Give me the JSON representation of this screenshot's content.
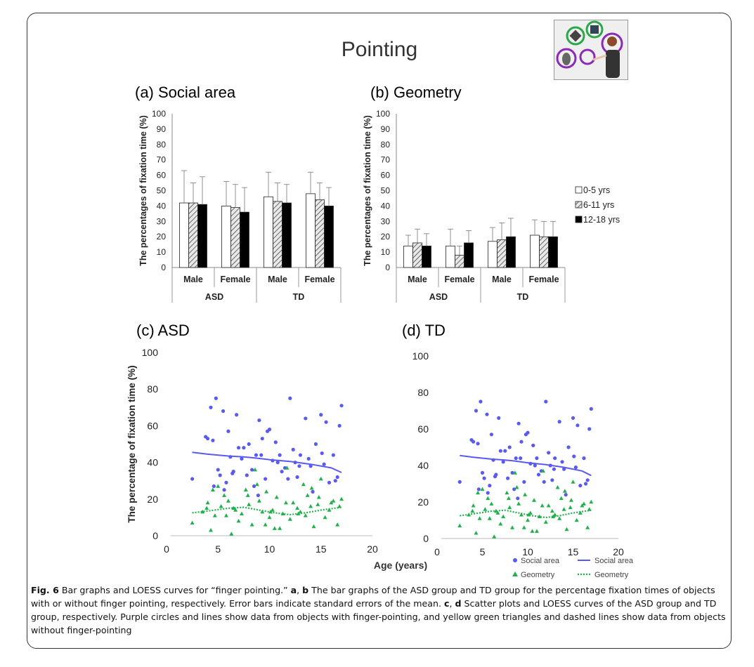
{
  "figure": {
    "title": "Pointing",
    "caption": {
      "fig_label": "Fig. 6",
      "lead": " Bar graphs and LOESS curves for “finger pointing.” ",
      "ab": "a",
      "comma1": ", ",
      "b": "b",
      "mid": " The bar graphs of the ASD group and TD group for the percentage fixation times of objects with or without finger pointing, respectively. Error bars indicate standard errors of the mean. ",
      "c": "c",
      "comma2": ", ",
      "d": "d",
      "tail": " Scatter plots and LOESS curves of the ASD group and TD group, respectively. Purple circles and lines show data from objects with finger-pointing, and yellow green triangles and dashed lines show data from objects without finger-pointing"
    }
  },
  "colors": {
    "social": "#5a5af0",
    "geometry": "#22b04b",
    "bar_white": "#ffffff",
    "bar_black": "#000000",
    "thumb_green": "#2aa84a",
    "thumb_purple": "#8a2bb8"
  },
  "chart_data": [
    {
      "id": "a",
      "type": "bar",
      "panel_title": "(a) Social area",
      "ylabel": "The percentages of fixation time (%)",
      "ylim": [
        0,
        100
      ],
      "yticks": [
        "0",
        "10",
        "20",
        "30",
        "40",
        "50",
        "60",
        "70",
        "80",
        "90",
        "100"
      ],
      "categories": [
        "Male",
        "Female",
        "Male",
        "Female"
      ],
      "groups": [
        {
          "label": "ASD"
        },
        {
          "label": "TD"
        }
      ],
      "series": [
        {
          "name": "0-5 yrs",
          "values": [
            42,
            40,
            46,
            48
          ],
          "errors": [
            21,
            16,
            16,
            14
          ]
        },
        {
          "name": "6-11 yrs",
          "values": [
            42,
            39,
            43,
            44
          ],
          "errors": [
            13,
            15,
            12,
            11
          ]
        },
        {
          "name": "12-18 yrs",
          "values": [
            41,
            36,
            42,
            40
          ],
          "errors": [
            18,
            16,
            12,
            12
          ]
        }
      ]
    },
    {
      "id": "b",
      "type": "bar",
      "panel_title": "(b) Geometry",
      "ylabel": "The percentages of fixation time (%)",
      "ylim": [
        0,
        100
      ],
      "yticks": [
        "0",
        "10",
        "20",
        "30",
        "40",
        "50",
        "60",
        "70",
        "80",
        "90",
        "100"
      ],
      "categories": [
        "Male",
        "Female",
        "Male",
        "Female"
      ],
      "groups": [
        {
          "label": "ASD"
        },
        {
          "label": "TD"
        }
      ],
      "series": [
        {
          "name": "0-5 yrs",
          "values": [
            14,
            14,
            17,
            21
          ],
          "errors": [
            7,
            11,
            9,
            10
          ]
        },
        {
          "name": "6-11 yrs",
          "values": [
            16,
            8,
            18,
            20
          ],
          "errors": [
            9,
            6,
            11,
            10
          ]
        },
        {
          "name": "12-18 yrs",
          "values": [
            14,
            16,
            20,
            20
          ],
          "errors": [
            8,
            8,
            12,
            10
          ]
        }
      ],
      "legend_position": "right"
    },
    {
      "id": "c",
      "type": "scatter",
      "panel_title": "(c) ASD",
      "ylabel": "The percentage of fixation time (%)",
      "xlim": [
        0,
        20
      ],
      "ylim": [
        0,
        100
      ],
      "xticks": [
        "0",
        "5",
        "10",
        "15",
        "20"
      ],
      "yticks": [
        "0",
        "20",
        "40",
        "60",
        "80",
        "100"
      ],
      "series": [
        {
          "name": "Social area",
          "marker": "circle",
          "x": [
            2.5,
            4,
            4.3,
            4.5,
            5,
            5.2,
            5.5,
            5.8,
            6,
            6.2,
            6.5,
            7,
            7.3,
            7.8,
            8,
            8.3,
            8.7,
            9,
            9.3,
            9.6,
            10,
            10.3,
            10.6,
            11,
            11.5,
            12,
            12.3,
            12.7,
            13,
            13.5,
            14,
            14.5,
            15,
            15.3,
            15.8,
            16.2,
            16.6,
            17,
            4.8,
            6.8,
            9.8,
            12.5,
            15.5,
            5.6,
            8.5,
            11.2,
            14.2,
            16.8,
            3.8,
            7.5,
            10.8,
            13.8,
            16.4,
            6.4,
            9.2,
            12.9,
            4.6,
            11.8,
            15.1,
            8.9
          ],
          "y": [
            31,
            53,
            70,
            52,
            36,
            33,
            68,
            29,
            57,
            43,
            35,
            48,
            42,
            33,
            50,
            36,
            44,
            63,
            53,
            31,
            58,
            41,
            51,
            44,
            37,
            75,
            47,
            32,
            44,
            64,
            38,
            50,
            66,
            39,
            29,
            44,
            32,
            71,
            75,
            66,
            57,
            40,
            62,
            25,
            27,
            35,
            24,
            60,
            54,
            48,
            40,
            42,
            30,
            34,
            44,
            38,
            27,
            31,
            45,
            22
          ]
        },
        {
          "name": "Social area LOESS",
          "line": "solid",
          "x": [
            2.5,
            4,
            6,
            7.5,
            8.5,
            10,
            12,
            14,
            16,
            17
          ],
          "y": [
            45.5,
            44.5,
            43.5,
            43,
            42.5,
            41.5,
            40.5,
            39,
            37,
            34.5
          ]
        },
        {
          "name": "Geometry",
          "marker": "triangle",
          "x": [
            2.5,
            3.5,
            4,
            4.3,
            4.7,
            5,
            5.3,
            5.6,
            6,
            6.3,
            6.7,
            7,
            7.3,
            7.7,
            8,
            8.3,
            8.6,
            9,
            9.3,
            9.7,
            10,
            10.3,
            10.7,
            11,
            11.3,
            11.7,
            12,
            12.3,
            12.7,
            13,
            13.3,
            13.7,
            14,
            14.3,
            14.7,
            15,
            15.4,
            15.8,
            16.2,
            16.6,
            17,
            4.5,
            6.5,
            8.8,
            10.5,
            12.8,
            14.8,
            16.8,
            5.8,
            9.6,
            11.6,
            13.5,
            3.9,
            7.9,
            10.1,
            14.1,
            16
          ],
          "y": [
            7,
            13,
            18,
            3,
            11,
            27,
            16,
            22,
            19,
            1,
            14,
            8,
            12,
            25,
            17,
            6,
            36,
            19,
            13,
            24,
            10,
            14,
            21,
            4,
            12,
            37,
            9,
            18,
            15,
            13,
            28,
            22,
            16,
            5,
            17,
            31,
            10,
            14,
            19,
            6,
            20,
            25,
            15,
            28,
            4,
            12,
            21,
            16,
            11,
            6,
            18,
            11,
            15,
            22,
            13,
            26,
            18
          ]
        },
        {
          "name": "Geometry LOESS",
          "line": "dotted",
          "x": [
            2.5,
            4,
            6,
            7.5,
            9,
            10.5,
            12,
            13.5,
            15,
            17
          ],
          "y": [
            12.5,
            13.5,
            15,
            15.5,
            14,
            12.5,
            11.5,
            12.5,
            14,
            15.5
          ]
        }
      ]
    },
    {
      "id": "d",
      "type": "scatter",
      "panel_title": "(d) TD",
      "ylabel": "",
      "xlim": [
        0,
        20
      ],
      "ylim": [
        0,
        100
      ],
      "xticks": [
        "0",
        "5",
        "10",
        "15",
        "20"
      ],
      "yticks": [
        "0",
        "20",
        "40",
        "60",
        "80",
        "100"
      ],
      "series": [
        {
          "name": "Social area",
          "marker": "circle",
          "x": [
            2.5,
            4,
            4.3,
            4.5,
            5,
            5.2,
            5.5,
            5.8,
            6,
            6.2,
            6.5,
            7,
            7.3,
            7.8,
            8,
            8.3,
            8.7,
            9,
            9.3,
            9.6,
            10,
            10.3,
            10.6,
            11,
            11.5,
            12,
            12.3,
            12.7,
            13,
            13.5,
            14,
            14.5,
            15,
            15.3,
            15.8,
            16.2,
            16.6,
            17,
            4.8,
            6.8,
            9.8,
            12.5,
            15.5,
            5.6,
            8.5,
            11.2,
            14.2,
            16.8,
            3.8,
            7.5,
            10.8,
            13.8,
            16.4,
            6.4,
            9.2,
            12.9,
            4.6,
            11.8,
            15.1,
            8.9
          ],
          "y": [
            31,
            53,
            70,
            52,
            36,
            33,
            68,
            29,
            57,
            43,
            35,
            48,
            42,
            33,
            50,
            36,
            44,
            63,
            53,
            31,
            58,
            41,
            51,
            44,
            37,
            75,
            47,
            32,
            44,
            64,
            38,
            50,
            66,
            39,
            29,
            44,
            32,
            71,
            75,
            66,
            57,
            40,
            62,
            25,
            27,
            35,
            24,
            60,
            54,
            48,
            40,
            42,
            30,
            34,
            44,
            38,
            27,
            31,
            45,
            22
          ]
        },
        {
          "name": "Social area LOESS",
          "line": "solid",
          "x": [
            2.5,
            4,
            6,
            7.5,
            8.5,
            10,
            12,
            14,
            16,
            17
          ],
          "y": [
            45.5,
            44.5,
            43.5,
            43,
            42.5,
            41.5,
            40.5,
            39,
            37,
            34.5
          ]
        },
        {
          "name": "Geometry",
          "marker": "triangle",
          "x": [
            2.5,
            3.5,
            4,
            4.3,
            4.7,
            5,
            5.3,
            5.6,
            6,
            6.3,
            6.7,
            7,
            7.3,
            7.7,
            8,
            8.3,
            8.6,
            9,
            9.3,
            9.7,
            10,
            10.3,
            10.7,
            11,
            11.3,
            11.7,
            12,
            12.3,
            12.7,
            13,
            13.3,
            13.7,
            14,
            14.3,
            14.7,
            15,
            15.4,
            15.8,
            16.2,
            16.6,
            17,
            4.5,
            6.5,
            8.8,
            10.5,
            12.8,
            14.8,
            16.8,
            5.8,
            9.6,
            11.6,
            13.5,
            3.9,
            7.9,
            10.1,
            14.1,
            16
          ],
          "y": [
            7,
            13,
            18,
            3,
            11,
            27,
            16,
            22,
            19,
            1,
            14,
            8,
            12,
            25,
            17,
            6,
            36,
            19,
            13,
            24,
            10,
            14,
            21,
            4,
            12,
            37,
            9,
            18,
            15,
            13,
            28,
            22,
            16,
            5,
            17,
            31,
            10,
            14,
            19,
            6,
            20,
            25,
            15,
            28,
            4,
            12,
            21,
            16,
            11,
            6,
            18,
            11,
            15,
            22,
            13,
            26,
            18
          ]
        },
        {
          "name": "Geometry LOESS",
          "line": "dotted",
          "x": [
            2.5,
            4,
            6,
            7.5,
            9,
            10.5,
            12,
            13.5,
            15,
            17
          ],
          "y": [
            12.5,
            13.5,
            15,
            15.5,
            14,
            12.5,
            11.5,
            12.5,
            14,
            15.5
          ]
        }
      ]
    }
  ],
  "shared_xlabel": "Age (years)",
  "scatter_legend": [
    {
      "label": "Social area",
      "kind": "circle"
    },
    {
      "label": "Social area",
      "kind": "line"
    },
    {
      "label": "Geometry",
      "kind": "triangle"
    },
    {
      "label": "Geometry",
      "kind": "dotted"
    }
  ]
}
